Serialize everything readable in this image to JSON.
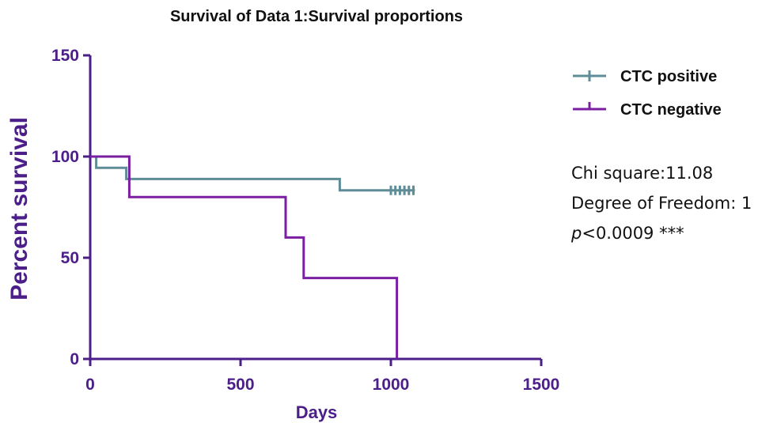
{
  "chart_data": {
    "type": "line",
    "step": true,
    "title": "Survival of Data 1:Survival proportions",
    "xlabel": "Days",
    "ylabel": "Percent survival",
    "xlim": [
      0,
      1500
    ],
    "ylim": [
      0,
      150
    ],
    "xticks": [
      "0",
      "500",
      "1000",
      "1500"
    ],
    "yticks": [
      "0",
      "50",
      "100",
      "150"
    ],
    "legend_position": "right",
    "series": [
      {
        "name": "CTC positive",
        "color": "#5e8c97",
        "points": [
          [
            0,
            100
          ],
          [
            20,
            100
          ],
          [
            20,
            94.4
          ],
          [
            120,
            94.4
          ],
          [
            120,
            88.9
          ],
          [
            830,
            88.9
          ],
          [
            830,
            83.3
          ],
          [
            1080,
            83.3
          ]
        ],
        "censored": [
          1000,
          1015,
          1030,
          1045,
          1060,
          1075
        ]
      },
      {
        "name": "CTC negative",
        "color": "#7b1fa2",
        "points": [
          [
            0,
            100
          ],
          [
            130,
            100
          ],
          [
            130,
            80
          ],
          [
            650,
            80
          ],
          [
            650,
            60
          ],
          [
            710,
            60
          ],
          [
            710,
            40
          ],
          [
            1020,
            40
          ],
          [
            1020,
            0
          ]
        ],
        "censored": []
      }
    ]
  },
  "stats": {
    "chi_square": "Chi square:11.08",
    "dof": "Degree of Freedom: 1",
    "p_symbol": "p",
    "p_rest": "<0.0009 ***"
  },
  "colors": {
    "axis": "#4b1e8a"
  }
}
